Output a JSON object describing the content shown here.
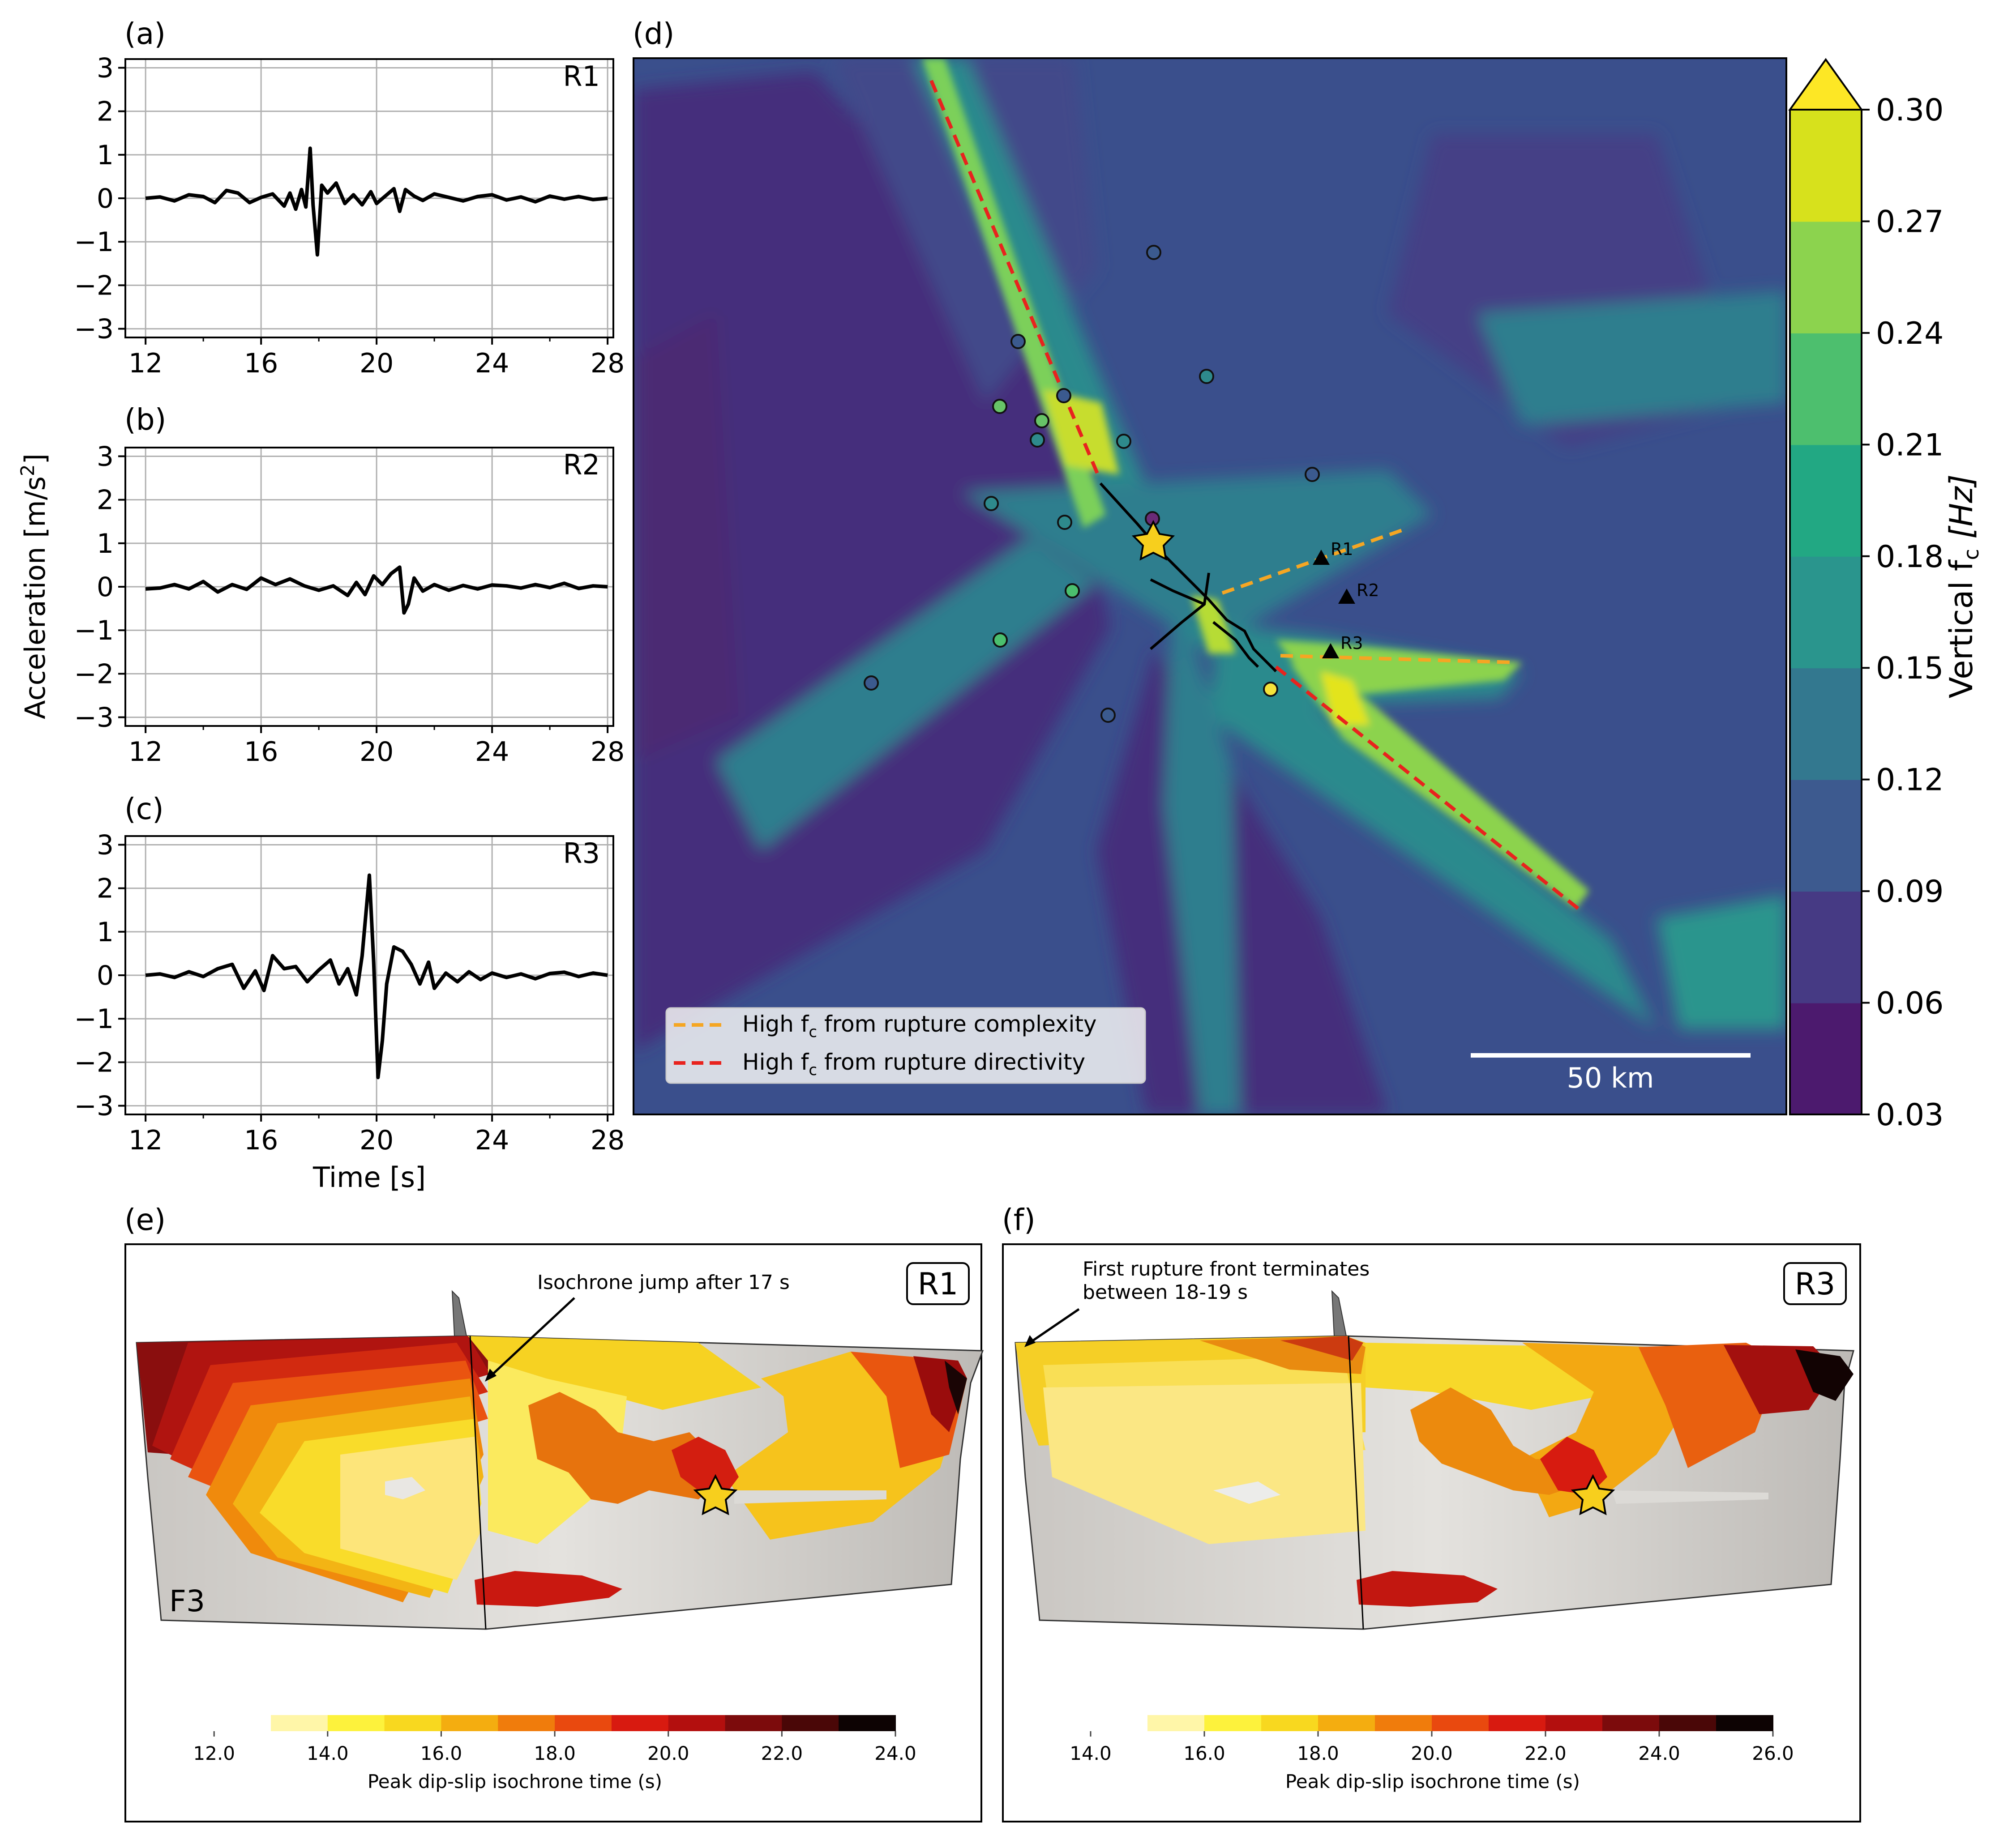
{
  "panel_labels": {
    "a": "(a)",
    "b": "(b)",
    "c": "(c)",
    "d": "(d)",
    "e": "(e)",
    "f": "(f)"
  },
  "shared": {
    "ylabel_text": "Acceleration [m/s",
    "ylabel_sup": "2",
    "ylabel_close": "]",
    "xlabel": "Time [s]"
  },
  "map": {
    "legend": [
      {
        "prefix": "High f",
        "sub": "c",
        "rest": " from rupture complexity",
        "color": "#f5a623"
      },
      {
        "prefix": "High f",
        "sub": "c",
        "rest": " from rupture directivity",
        "color": "#e8231e"
      }
    ],
    "scalebar_label": "50 km",
    "receivers": [
      "R1",
      "R2",
      "R3"
    ],
    "colorbar": {
      "label_prefix": "Vertical f",
      "label_sub": "c",
      "label_unit": " [Hz]",
      "ticks": [
        "0.03",
        "0.06",
        "0.09",
        "0.12",
        "0.15",
        "0.18",
        "0.21",
        "0.24",
        "0.27",
        "0.30"
      ],
      "colors": [
        "#4c1a6e",
        "#463a84",
        "#3d5a8f",
        "#33788f",
        "#2a958d",
        "#22a883",
        "#4dbf6e",
        "#8cd34e",
        "#d7e11c"
      ],
      "extend_color": "#fde725"
    }
  },
  "slip_e": {
    "badge": "R1",
    "fault_label": "F3",
    "annotation": "Isochrone jump after 17 s",
    "cbar_ticks": [
      "12.0",
      "14.0",
      "16.0",
      "18.0",
      "20.0",
      "22.0",
      "24.0"
    ],
    "cbar_label": "Peak dip-slip isochrone time (s)"
  },
  "slip_f": {
    "badge": "R3",
    "annotation_line1": "First rupture front terminates",
    "annotation_line2": "between 18-19 s",
    "cbar_ticks": [
      "14.0",
      "16.0",
      "18.0",
      "20.0",
      "22.0",
      "24.0",
      "26.0"
    ],
    "cbar_label": "Peak dip-slip isochrone time (s)"
  },
  "isochrone_colors": [
    "#fff6a8",
    "#fdf23c",
    "#f8d81f",
    "#f4ad10",
    "#f07c0c",
    "#e9490f",
    "#d81a10",
    "#b30f0e",
    "#7c0b0c",
    "#4a0707",
    "#0d0303"
  ],
  "chart_data": [
    {
      "type": "line",
      "panel": "a",
      "title": "R1",
      "xlabel": "",
      "ylabel": "Acceleration [m/s2]",
      "xlim": [
        11.3,
        28.2
      ],
      "ylim": [
        -3.2,
        3.2
      ],
      "xticks": [
        12,
        16,
        20,
        24,
        28
      ],
      "yticks": [
        -3,
        -2,
        -1,
        0,
        1,
        2,
        3
      ],
      "grid": true,
      "x": [
        12,
        12.5,
        13,
        13.5,
        14,
        14.4,
        14.8,
        15.2,
        15.6,
        16,
        16.4,
        16.8,
        17,
        17.2,
        17.4,
        17.55,
        17.7,
        17.8,
        17.95,
        18.1,
        18.3,
        18.6,
        18.9,
        19.2,
        19.5,
        19.8,
        20,
        20.3,
        20.6,
        20.8,
        21,
        21.3,
        21.6,
        22,
        22.5,
        23,
        23.5,
        24,
        24.5,
        25,
        25.5,
        26,
        26.5,
        27,
        27.5,
        28
      ],
      "series": [
        {
          "name": "R1",
          "values": [
            0,
            0.03,
            -0.06,
            0.08,
            0.04,
            -0.1,
            0.18,
            0.12,
            -0.1,
            0.02,
            0.1,
            -0.18,
            0.12,
            -0.25,
            0.2,
            -0.2,
            1.15,
            -0.15,
            -1.3,
            0.3,
            0.12,
            0.35,
            -0.12,
            0.08,
            -0.15,
            0.15,
            -0.12,
            0.05,
            0.22,
            -0.3,
            0.2,
            0.05,
            -0.05,
            0.1,
            0.02,
            -0.06,
            0.04,
            0.08,
            -0.04,
            0.03,
            -0.08,
            0.05,
            -0.02,
            0.04,
            -0.03,
            0
          ]
        }
      ]
    },
    {
      "type": "line",
      "panel": "b",
      "title": "R2",
      "xlabel": "",
      "ylabel": "Acceleration [m/s2]",
      "xlim": [
        11.3,
        28.2
      ],
      "ylim": [
        -3.2,
        3.2
      ],
      "xticks": [
        12,
        16,
        20,
        24,
        28
      ],
      "yticks": [
        -3,
        -2,
        -1,
        0,
        1,
        2,
        3
      ],
      "grid": true,
      "x": [
        12,
        12.5,
        13,
        13.5,
        14,
        14.5,
        15,
        15.5,
        16,
        16.5,
        17,
        17.5,
        18,
        18.5,
        19,
        19.3,
        19.6,
        19.9,
        20.2,
        20.5,
        20.8,
        20.95,
        21.1,
        21.3,
        21.6,
        22,
        22.5,
        23,
        23.5,
        24,
        24.5,
        25,
        25.5,
        26,
        26.5,
        27,
        27.5,
        28
      ],
      "series": [
        {
          "name": "R2",
          "values": [
            -0.05,
            -0.03,
            0.05,
            -0.05,
            0.12,
            -0.12,
            0.05,
            -0.06,
            0.2,
            0.05,
            0.18,
            0.02,
            -0.08,
            0.02,
            -0.2,
            0.1,
            -0.18,
            0.25,
            0.05,
            0.3,
            0.45,
            -0.6,
            -0.4,
            0.2,
            -0.1,
            0.05,
            -0.08,
            0.03,
            -0.05,
            0.04,
            0.02,
            -0.03,
            0.05,
            -0.02,
            0.08,
            -0.04,
            0.02,
            0
          ]
        }
      ]
    },
    {
      "type": "line",
      "panel": "c",
      "title": "R3",
      "xlabel": "Time [s]",
      "ylabel": "Acceleration [m/s2]",
      "xlim": [
        11.3,
        28.2
      ],
      "ylim": [
        -3.2,
        3.2
      ],
      "xticks": [
        12,
        16,
        20,
        24,
        28
      ],
      "yticks": [
        -3,
        -2,
        -1,
        0,
        1,
        2,
        3
      ],
      "grid": true,
      "x": [
        12,
        12.5,
        13,
        13.5,
        14,
        14.5,
        15,
        15.4,
        15.8,
        16.1,
        16.4,
        16.8,
        17.2,
        17.6,
        18,
        18.4,
        18.7,
        19,
        19.3,
        19.5,
        19.75,
        19.9,
        20.05,
        20.2,
        20.35,
        20.6,
        20.9,
        21.2,
        21.5,
        21.8,
        22,
        22.4,
        22.8,
        23.2,
        23.6,
        24,
        24.5,
        25,
        25.5,
        26,
        26.5,
        27,
        27.5,
        28
      ],
      "series": [
        {
          "name": "R3",
          "values": [
            0,
            0.03,
            -0.05,
            0.08,
            -0.03,
            0.15,
            0.25,
            -0.3,
            0.1,
            -0.35,
            0.45,
            0.15,
            0.2,
            -0.15,
            0.12,
            0.35,
            -0.2,
            0.15,
            -0.45,
            0.45,
            2.3,
            0.3,
            -2.35,
            -1.5,
            -0.2,
            0.65,
            0.55,
            0.25,
            -0.2,
            0.3,
            -0.3,
            0.05,
            -0.15,
            0.08,
            -0.1,
            0.05,
            -0.05,
            0.03,
            -0.08,
            0.04,
            0.07,
            -0.03,
            0.05,
            0
          ]
        }
      ]
    }
  ]
}
